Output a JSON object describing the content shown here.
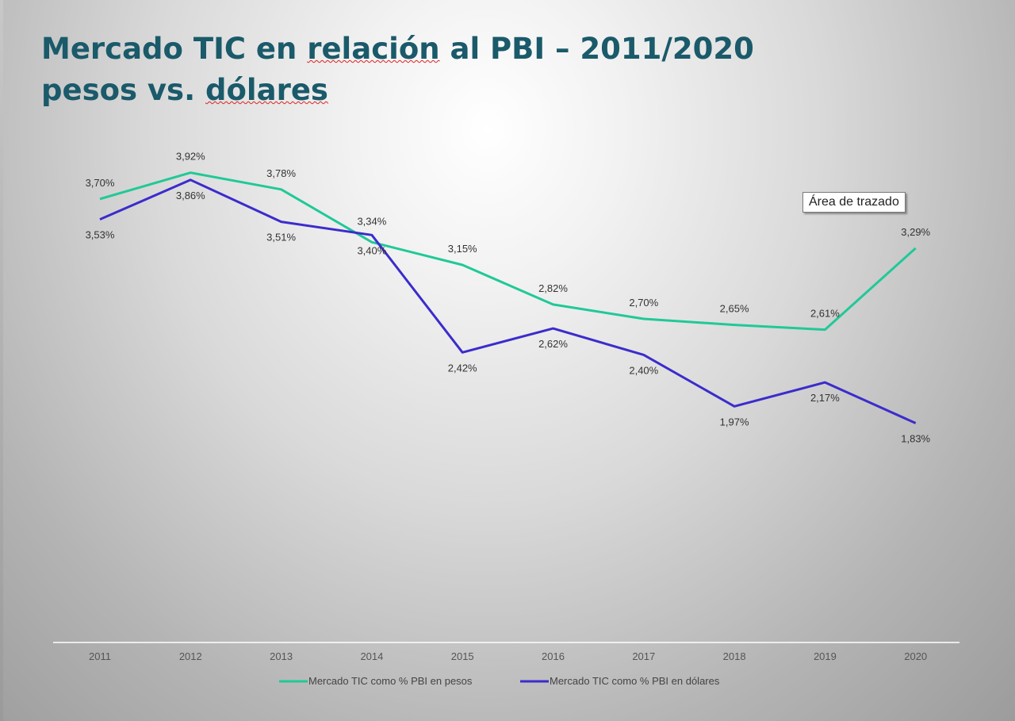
{
  "slide": {
    "title_line1_part1": "Mercado TIC en ",
    "title_line1_spell": "relación",
    "title_line1_part2": " al PBI – 2011/2020",
    "title_line2_part1": "pesos vs. ",
    "title_line2_spell": "dólares"
  },
  "tooltip": {
    "text": "Área de trazado"
  },
  "colors": {
    "pesos": "#20c997",
    "dolares": "#3b2ccc",
    "title": "#1a5a6a"
  },
  "chart_data": {
    "type": "line",
    "categories": [
      "2011",
      "2012",
      "2013",
      "2014",
      "2015",
      "2016",
      "2017",
      "2018",
      "2019",
      "2020"
    ],
    "series": [
      {
        "name": "Mercado TIC como % PBI en pesos",
        "values": [
          3.7,
          3.92,
          3.78,
          3.34,
          3.15,
          2.82,
          2.7,
          2.65,
          2.61,
          3.29
        ],
        "labels": [
          "3,70%",
          "3,92%",
          "3,78%",
          "3,34%",
          "3,15%",
          "2,82%",
          "2,70%",
          "2,65%",
          "2,61%",
          "3,29%"
        ]
      },
      {
        "name": "Mercado TIC como % PBI en dólares",
        "values": [
          3.53,
          3.86,
          3.51,
          3.4,
          2.42,
          2.62,
          2.4,
          1.97,
          2.17,
          1.83
        ],
        "labels": [
          "3,53%",
          "3,86%",
          "3,51%",
          "3,40%",
          "2,42%",
          "2,62%",
          "2,40%",
          "1,97%",
          "2,17%",
          "1,83%"
        ]
      }
    ],
    "ylim": [
      0,
      4.5
    ],
    "grid": false,
    "legend_position": "bottom"
  }
}
